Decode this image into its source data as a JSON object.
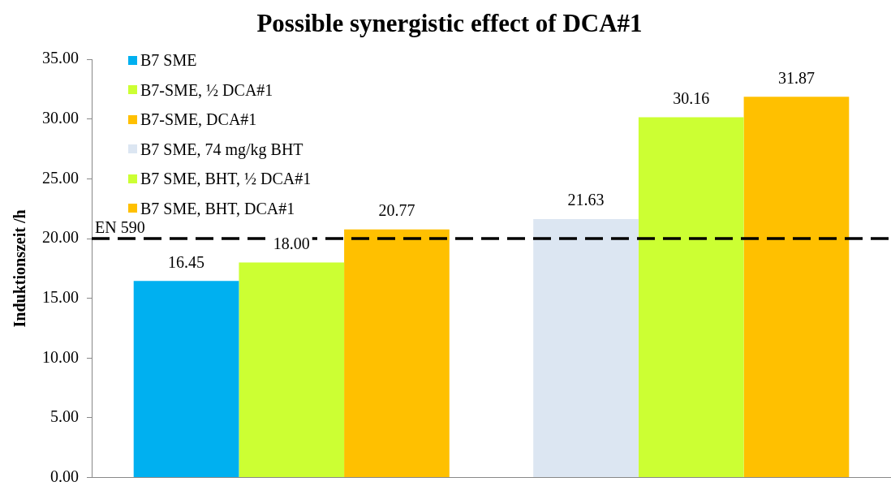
{
  "chart_data": {
    "type": "bar",
    "title": "Possible synergistic effect of DCA#1",
    "ylabel": "Induktionszeit /h",
    "categories": [
      null,
      null
    ],
    "series": [
      {
        "name": "B7 SME",
        "color": "#00b0f0",
        "values": [
          16.45,
          null
        ]
      },
      {
        "name": "B7-SME, ½ DCA#1",
        "color": "#ccff33",
        "values": [
          18.0,
          null
        ]
      },
      {
        "name": "B7-SME, DCA#1",
        "color": "#ffc000",
        "values": [
          20.77,
          null
        ]
      },
      {
        "name": "B7 SME, 74 mg/kg BHT",
        "color": "#dce6f2",
        "values": [
          null,
          21.63
        ]
      },
      {
        "name": "B7 SME, BHT, ½ DCA#1",
        "color": "#ccff33",
        "values": [
          null,
          30.16
        ]
      },
      {
        "name": "B7 SME, BHT, DCA#1",
        "color": "#ffc000",
        "values": [
          null,
          31.87
        ]
      }
    ],
    "value_labels": [
      [
        "16.45",
        null
      ],
      [
        "18.00",
        null
      ],
      [
        "20.77",
        null
      ],
      [
        null,
        "21.63"
      ],
      [
        null,
        "30.16"
      ],
      [
        null,
        "31.87"
      ]
    ],
    "ylim": [
      0,
      35
    ],
    "yticks": [
      {
        "value": 0,
        "label": "0.00"
      },
      {
        "value": 5,
        "label": "5.00"
      },
      {
        "value": 10,
        "label": "10.00"
      },
      {
        "value": 15,
        "label": "15.00"
      },
      {
        "value": 20,
        "label": "20.00"
      },
      {
        "value": 25,
        "label": "25.00"
      },
      {
        "value": 30,
        "label": "30.00"
      },
      {
        "value": 35,
        "label": "35.00"
      }
    ],
    "ref_lines": [
      {
        "axis": "y",
        "value": 20,
        "label": "EN 590",
        "color": "#000000",
        "line_style": "dashed"
      }
    ],
    "grid": false,
    "legend": "top left"
  }
}
